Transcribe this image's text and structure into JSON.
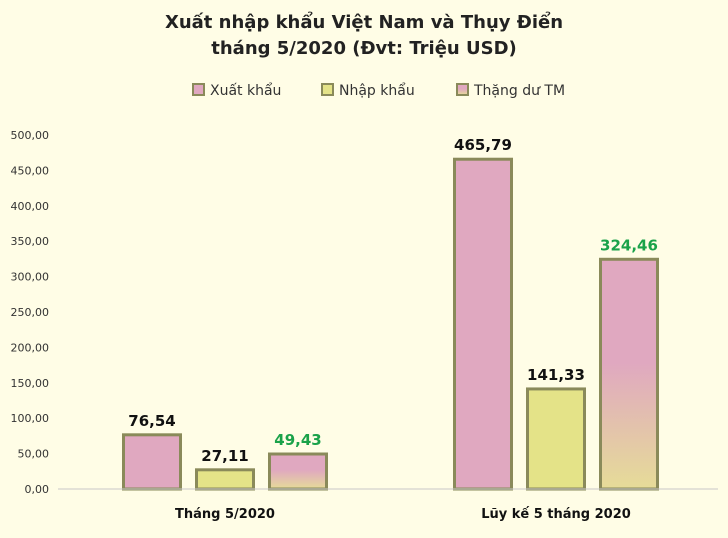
{
  "chart_data": {
    "type": "bar",
    "title": "Xuất nhập khẩu Việt Nam và Thụy Điển",
    "subtitle": "tháng 5/2020 (Đvt: Triệu USD)",
    "categories": [
      "Tháng 5/2020",
      "Lũy kế 5 tháng 2020"
    ],
    "series": [
      {
        "name": "Xuất khẩu",
        "values": [
          76.54,
          465.79
        ],
        "labels": [
          "76,54",
          "465,79"
        ],
        "color": "#e0a8c0",
        "label_color": "#111111"
      },
      {
        "name": "Nhập khẩu",
        "values": [
          27.11,
          141.33
        ],
        "labels": [
          "27,11",
          "141,33"
        ],
        "color": "#e4e388",
        "label_color": "#111111"
      },
      {
        "name": "Thặng dư TM",
        "values": [
          49.43,
          324.46
        ],
        "labels": [
          "49,43",
          "324,46"
        ],
        "color": "#e0a8c0",
        "label_color": "#1aa24a"
      }
    ],
    "ylim": [
      0,
      500
    ],
    "yticks": [
      "0,00",
      "50,00",
      "100,00",
      "150,00",
      "200,00",
      "250,00",
      "300,00",
      "350,00",
      "400,00",
      "450,00",
      "500,00"
    ],
    "legend_position": "top",
    "bar_border_color": "#8a8a5a",
    "grid": false
  }
}
